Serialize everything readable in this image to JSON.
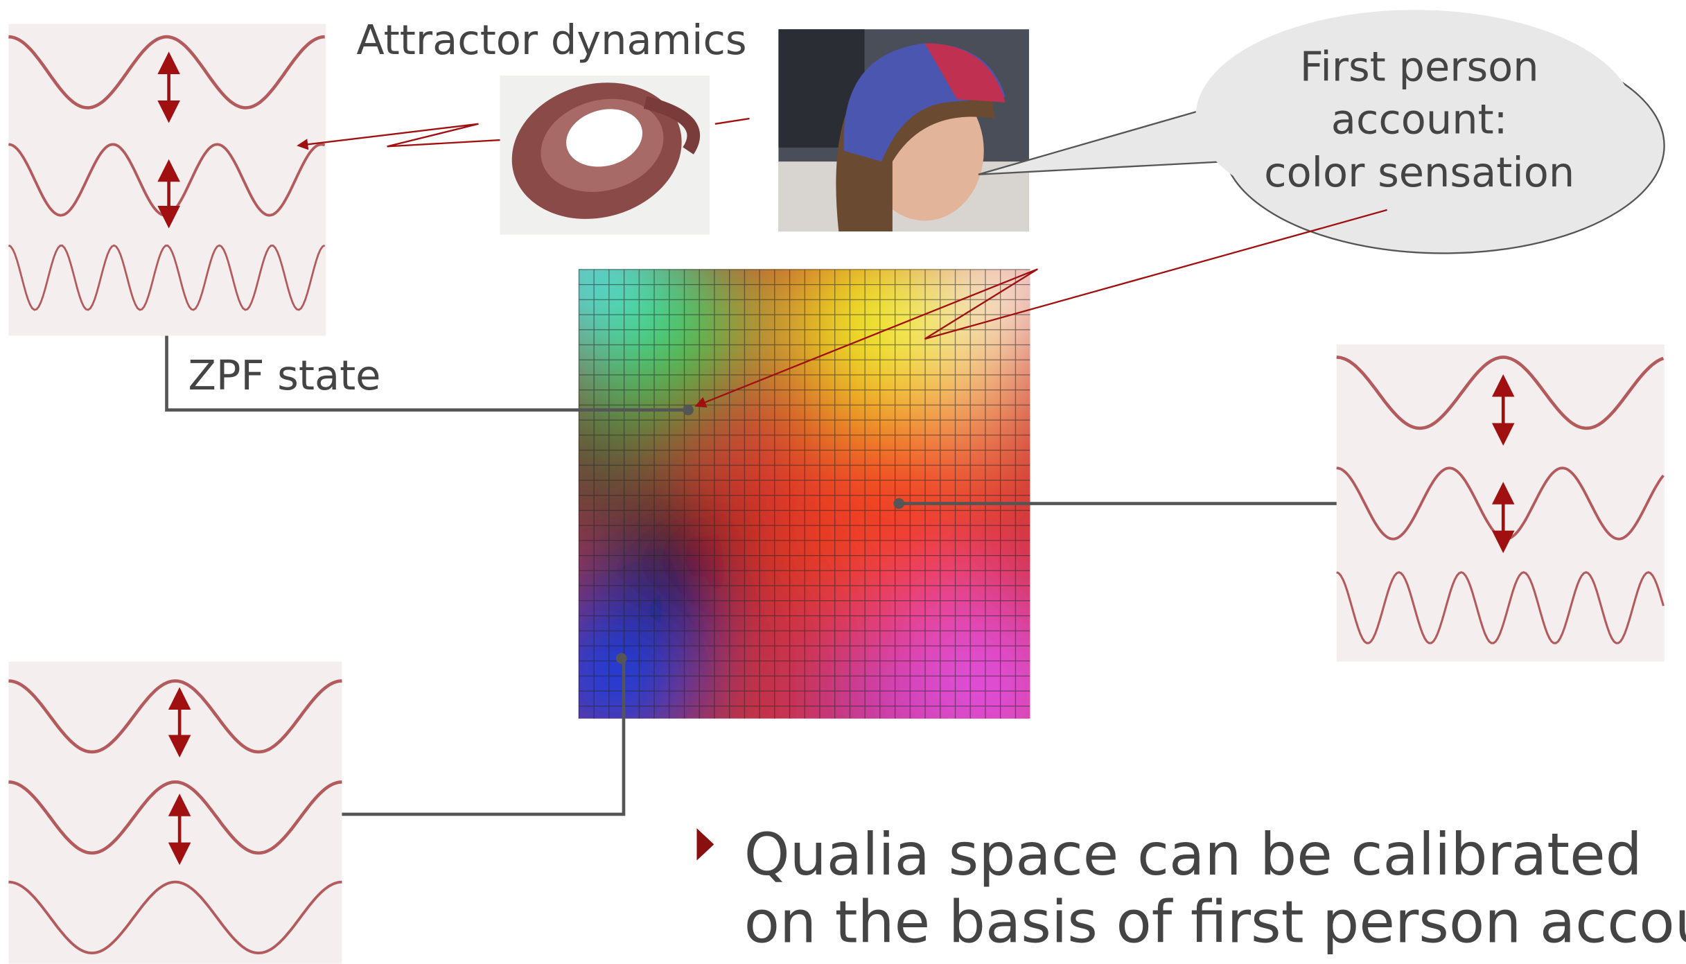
{
  "labels": {
    "attractor": "Attractor dynamics",
    "zpf": "ZPF state"
  },
  "bubble": {
    "lines": [
      "First person",
      "account:",
      "color sensation"
    ]
  },
  "bullet": {
    "lines": [
      "Qualia space can be calibrated",
      "on the basis of first person accounts"
    ]
  }
}
